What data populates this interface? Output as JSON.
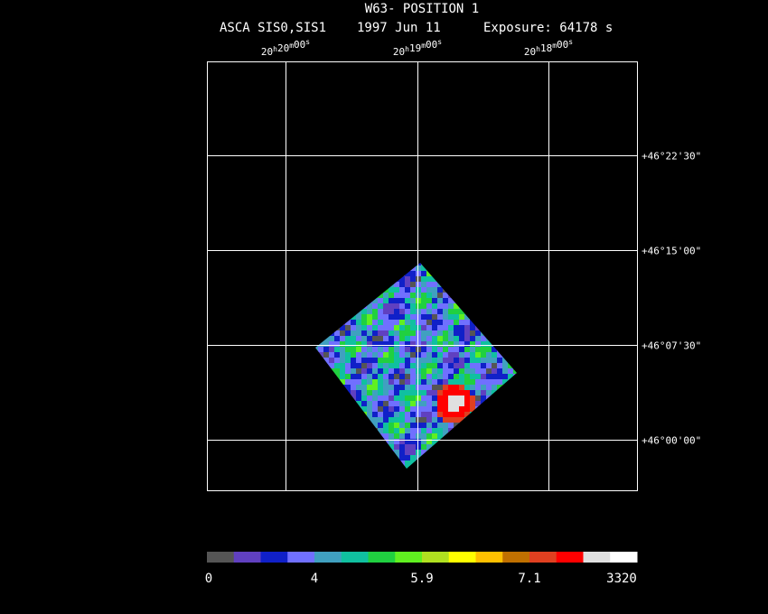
{
  "header": {
    "title": "W63- POSITION 1",
    "instrument": "ASCA SIS0,SIS1",
    "date": "1997 Jun 11",
    "exposure": "Exposure: 64178 s"
  },
  "ra_axis": {
    "units": [
      "h",
      "m",
      "s"
    ],
    "labels": [
      {
        "hours": "20",
        "minutes": "20",
        "seconds": "00"
      },
      {
        "hours": "20",
        "minutes": "19",
        "seconds": "00"
      },
      {
        "hours": "20",
        "minutes": "18",
        "seconds": "00"
      }
    ]
  },
  "dec_axis": {
    "labels": [
      "+46°22'30\"",
      "+46°15'00\"",
      "+46°07'30\"",
      "+46°00'00\""
    ]
  },
  "colorbar": {
    "colors": [
      "#555555",
      "#6040c0",
      "#1020c8",
      "#7070ff",
      "#40a0c0",
      "#10c0a0",
      "#20d040",
      "#60f020",
      "#b0e020",
      "#ffff00",
      "#ffc000",
      "#c07000",
      "#e04020",
      "#ff0000",
      "#e0e0e0",
      "#ffffff"
    ],
    "labels": [
      "0",
      "4",
      "5.9",
      "7.1",
      "3320"
    ]
  }
}
